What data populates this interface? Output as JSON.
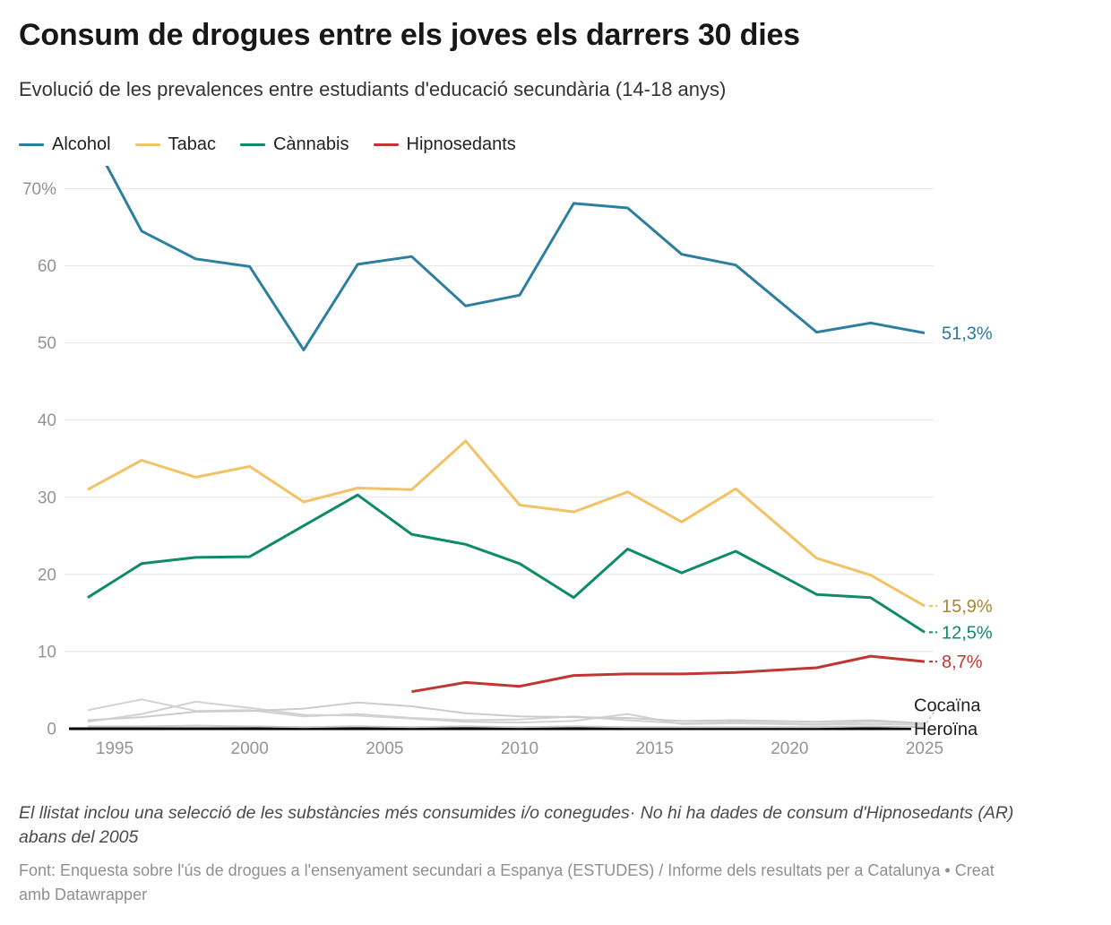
{
  "header": {
    "title": "Consum de drogues entre els joves els darrers 30 dies",
    "subtitle": "Evolució de les prevalences entre estudiants d'educació secundària (14-18 anys)"
  },
  "legend": {
    "items": [
      {
        "label": "Alcohol",
        "color": "#2c7f9e"
      },
      {
        "label": "Tabac",
        "color": "#f2c266"
      },
      {
        "label": "Cànnabis",
        "color": "#108b69"
      },
      {
        "label": "Hipnosedants",
        "color": "#bf3632"
      }
    ]
  },
  "footer": {
    "footnote": "El llistat inclou una selecció de les substàncies més consumides i/o conegudes· No hi ha dades de consum d'Hipnosedants (AR) abans del 2005",
    "source_text": "Font: Enquesta sobre l'ús de drogues a l'ensenyament secundari a Espanya (ESTUDES) / Informe dels resultats per a Catalunya",
    "separator": " • ",
    "attribution": "Creat amb Datawrapper"
  },
  "chart_data": {
    "type": "line",
    "title": "Consum de drogues entre els joves els darrers 30 dies",
    "subtitle": "Evolució de les prevalences entre estudiants d'educació secundària (14-18 anys)",
    "unit": "%",
    "grid": "horizontal",
    "legend_position": "top-left",
    "xlim": [
      1994,
      2025
    ],
    "ylim": [
      0,
      72.8
    ],
    "years": [
      1994,
      1996,
      1998,
      2000,
      2002,
      2004,
      2006,
      2008,
      2010,
      2012,
      2014,
      2016,
      2018,
      2021,
      2023,
      2025
    ],
    "y_ticks": [
      {
        "v": 0,
        "label": "0"
      },
      {
        "v": 10,
        "label": "10"
      },
      {
        "v": 20,
        "label": "20"
      },
      {
        "v": 30,
        "label": "30"
      },
      {
        "v": 40,
        "label": "40"
      },
      {
        "v": 50,
        "label": "50"
      },
      {
        "v": 60,
        "label": "60"
      },
      {
        "v": 70,
        "label": "70%"
      }
    ],
    "x_ticks": [
      {
        "v": 1995,
        "label": "1995"
      },
      {
        "v": 2000,
        "label": "2000"
      },
      {
        "v": 2005,
        "label": "2005"
      },
      {
        "v": 2010,
        "label": "2010"
      },
      {
        "v": 2015,
        "label": "2015"
      },
      {
        "v": 2020,
        "label": "2020"
      },
      {
        "v": 2025,
        "label": "2025"
      }
    ],
    "series": [
      {
        "key": "gray-line-1",
        "name": null,
        "color": "#d2d2d2",
        "width": 2,
        "values": [
          2.4,
          3.8,
          2.3,
          2.4,
          1.6,
          1.9,
          1.4,
          1.1,
          1.2,
          1.6,
          1.1,
          0.7,
          0.9,
          0.6,
          0.9,
          0.7
        ],
        "end_label": null,
        "end_label_color": null,
        "connector": null
      },
      {
        "key": "gray-line-2",
        "name": null,
        "color": "#d2d2d2",
        "width": 2,
        "values": [
          0.9,
          1.9,
          3.5,
          2.7,
          1.8,
          1.7,
          1.3,
          0.9,
          0.8,
          1.0,
          1.9,
          0.6,
          0.7,
          0.5,
          0.6,
          0.5
        ],
        "end_label": null,
        "end_label_color": null,
        "connector": null
      },
      {
        "key": "cocaina",
        "name": "Cocaïna",
        "color": "#cccccc",
        "width": 2,
        "values": [
          1.1,
          1.5,
          2.2,
          2.3,
          2.6,
          3.4,
          2.9,
          2.0,
          1.6,
          1.5,
          1.4,
          1.0,
          1.1,
          0.9,
          1.1,
          0.7
        ],
        "end_label": "Cocaïna",
        "end_label_color": "#1f1f1f",
        "end_label_x": 1020,
        "label_at": 3.1,
        "connector": "diag"
      },
      {
        "key": "heroina",
        "name": "Heroïna",
        "color": "#c6c6c6",
        "width": 2,
        "values": [
          0.3,
          0.3,
          0.4,
          0.3,
          0.2,
          0.3,
          0.2,
          0.3,
          0.2,
          0.3,
          0.2,
          0.2,
          0.2,
          0.2,
          0.3,
          0.2
        ],
        "end_label": "Heroïna",
        "end_label_color": "#1f1f1f",
        "end_label_x": 1020,
        "label_at": 0.0,
        "connector": null
      },
      {
        "key": "tabac",
        "name": "Tabac",
        "color": "#f2c266",
        "width": 3,
        "values": [
          31.0,
          34.8,
          32.6,
          34.0,
          29.4,
          31.2,
          31.0,
          37.3,
          29.0,
          28.1,
          30.7,
          26.8,
          31.1,
          22.1,
          19.9,
          15.9
        ],
        "end_label": "15,9%",
        "end_label_color": "#a8872e",
        "end_label_x": 1051,
        "label_at": 15.9,
        "connector": "dash"
      },
      {
        "key": "cannabis",
        "name": "Cànnabis",
        "color": "#108b69",
        "width": 3,
        "values": [
          17.0,
          21.4,
          22.2,
          22.3,
          26.3,
          30.3,
          25.2,
          23.9,
          21.4,
          17.0,
          23.3,
          20.2,
          23.0,
          17.4,
          17.0,
          12.5
        ],
        "end_label": "12,5%",
        "end_label_color": "#0d8a6a",
        "end_label_x": 1051,
        "label_at": 12.5,
        "connector": "dash"
      },
      {
        "key": "hipnosedants",
        "name": "Hipnosedants",
        "color": "#bf3632",
        "width": 3,
        "values": [
          null,
          null,
          null,
          null,
          null,
          null,
          4.8,
          6.0,
          5.5,
          6.9,
          7.1,
          7.1,
          7.3,
          7.9,
          9.4,
          8.7
        ],
        "end_label": "8,7%",
        "end_label_color": "#c0392f",
        "end_label_x": 1051,
        "label_at": 8.7,
        "connector": "dash"
      },
      {
        "key": "alcohol",
        "name": "Alcohol",
        "color": "#2c7f9e",
        "width": 3,
        "values": [
          77.6,
          64.5,
          60.9,
          59.9,
          49.1,
          60.2,
          61.2,
          54.8,
          56.2,
          68.1,
          67.5,
          61.5,
          60.1,
          51.4,
          52.6,
          51.3
        ],
        "end_label": "51,3%",
        "end_label_color": "#2879a0",
        "end_label_x": 1051,
        "label_at": 51.3,
        "connector": null
      }
    ]
  }
}
